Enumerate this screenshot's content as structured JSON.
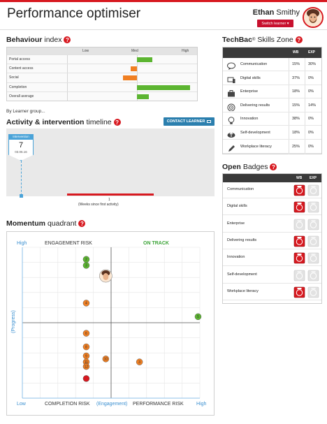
{
  "header": {
    "title": "Performance optimiser",
    "user_first": "Ethan",
    "user_last": "Smithy",
    "switch_label": "Switch learner ▾"
  },
  "behaviour": {
    "title_bold": "Behaviour",
    "title_rest": "index",
    "levels": [
      "Low",
      "Med",
      "High"
    ],
    "rows": [
      {
        "label": "Portal access",
        "value": 0.35
      },
      {
        "label": "Content access",
        "value": -0.15
      },
      {
        "label": "Social",
        "value": -0.32
      },
      {
        "label": "Completion",
        "value": 1.22
      },
      {
        "label": "Overall average",
        "value": 0.28
      }
    ]
  },
  "by_learner_group": "By Learner group...",
  "activity": {
    "title_bold": "Activity & intervention",
    "title_rest": "timeline",
    "contact_label": "CONTACT LEARNER",
    "intervention_label": "Intervention",
    "intervention_number": "7",
    "intervention_date": "03.06.16",
    "tick_label": "1",
    "axis_caption": "(Weeks since first activity)"
  },
  "momentum": {
    "title_bold": "Momentum",
    "title_rest": "quadrant",
    "labels": {
      "engagement_risk": "ENGAGEMENT RISK",
      "on_track": "ON TRACK",
      "completion_risk": "COMPLETION RISK",
      "performance_risk": "PERFORMANCE RISK",
      "high_y": "High",
      "low": "Low",
      "high_x": "High",
      "x_axis": "(Engagement)",
      "y_axis": "(Progress)"
    },
    "points": [
      {
        "label": "2",
        "engagement": 0.36,
        "progress": 0.92,
        "color": "green"
      },
      {
        "label": "3",
        "engagement": 0.36,
        "progress": 0.88,
        "color": "green"
      },
      {
        "label": "",
        "engagement": 0.47,
        "progress": 0.81,
        "color": "avatar"
      },
      {
        "label": "4",
        "engagement": 0.36,
        "progress": 0.63,
        "color": "orange"
      },
      {
        "label": "5",
        "engagement": 0.99,
        "progress": 0.54,
        "color": "green"
      },
      {
        "label": "6",
        "engagement": 0.36,
        "progress": 0.43,
        "color": "orange"
      },
      {
        "label": "8",
        "engagement": 0.36,
        "progress": 0.34,
        "color": "orange"
      },
      {
        "label": "9",
        "engagement": 0.36,
        "progress": 0.28,
        "color": "orange"
      },
      {
        "label": "10",
        "engagement": 0.47,
        "progress": 0.26,
        "color": "orange"
      },
      {
        "label": "11",
        "engagement": 0.36,
        "progress": 0.24,
        "color": "orange"
      },
      {
        "label": "12",
        "engagement": 0.36,
        "progress": 0.21,
        "color": "orange"
      },
      {
        "label": "3",
        "engagement": 0.66,
        "progress": 0.24,
        "color": "orange"
      },
      {
        "label": "",
        "engagement": 0.36,
        "progress": 0.13,
        "color": "red"
      }
    ]
  },
  "techbac": {
    "title_bold": "TechBac",
    "title_sup": "®",
    "title_rest": "Skills Zone",
    "col_wb": "WB",
    "col_exp": "EXP",
    "skills": [
      {
        "label": "Communication",
        "wb": "15%",
        "exp": "30%",
        "icon": "speech-bubble-icon"
      },
      {
        "label": "Digital skills",
        "wb": "37%",
        "exp": "0%",
        "icon": "devices-icon"
      },
      {
        "label": "Enterprise",
        "wb": "18%",
        "exp": "0%",
        "icon": "briefcase-icon"
      },
      {
        "label": "Delivering results",
        "wb": "15%",
        "exp": "14%",
        "icon": "target-icon"
      },
      {
        "label": "Innovation",
        "wb": "38%",
        "exp": "0%",
        "icon": "lightbulb-icon"
      },
      {
        "label": "Self-development",
        "wb": "18%",
        "exp": "0%",
        "icon": "cloud-up-icon"
      },
      {
        "label": "Workplace literacy",
        "wb": "25%",
        "exp": "0%",
        "icon": "pencil-icon"
      }
    ]
  },
  "badges": {
    "title_bold": "Open",
    "title_rest": "Badges",
    "col_wb": "WB",
    "col_exp": "EXP",
    "items": [
      {
        "label": "Communication",
        "wb": true,
        "exp": false
      },
      {
        "label": "Digital skills",
        "wb": true,
        "exp": false
      },
      {
        "label": "Enterprise",
        "wb": false,
        "exp": false
      },
      {
        "label": "Delivering results",
        "wb": true,
        "exp": false
      },
      {
        "label": "Innovation",
        "wb": true,
        "exp": false
      },
      {
        "label": "Self-development",
        "wb": false,
        "exp": false
      },
      {
        "label": "Workplace literacy",
        "wb": true,
        "exp": false
      }
    ]
  },
  "colors": {
    "brand_red": "#d71920",
    "bar_green": "#5cb531",
    "bar_orange": "#f07f22",
    "accent_blue": "#2b7fae"
  }
}
